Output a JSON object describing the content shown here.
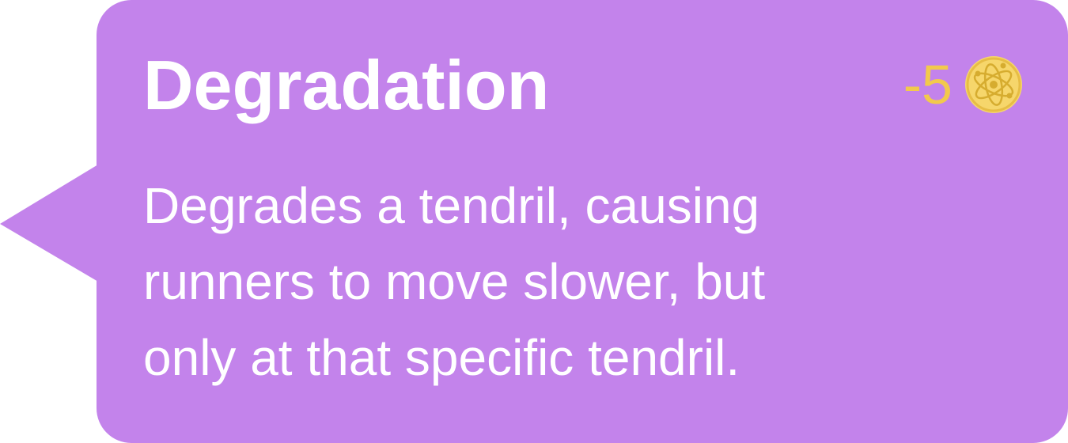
{
  "tooltip": {
    "title": "Degradation",
    "cost": {
      "value": "-5",
      "icon": "atom-coin-icon"
    },
    "description_lines": [
      "Degrades a tendril, causing",
      "runners to move slower, but",
      "only at that specific tendril."
    ]
  },
  "colors": {
    "bubble": "#c383eb",
    "text": "#ffffff",
    "cost": "#f2c94c",
    "coin": "#f6d66b",
    "coin_detail": "#d6ac2f"
  }
}
